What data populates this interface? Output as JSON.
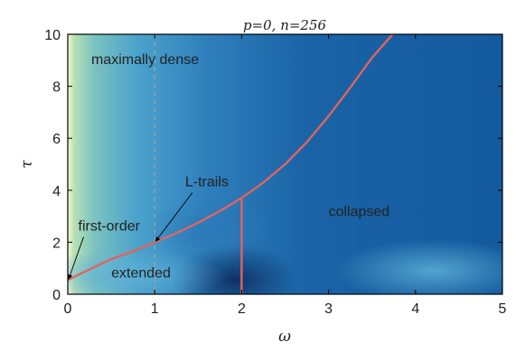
{
  "chart_data": {
    "type": "heatmap",
    "title": "p=0, n=256",
    "xlabel": "ω",
    "ylabel": "τ",
    "xlim": [
      0,
      5
    ],
    "ylim": [
      0,
      10
    ],
    "xticks": [
      "0",
      "1",
      "2",
      "3",
      "4",
      "5"
    ],
    "yticks": [
      "0",
      "2",
      "4",
      "6",
      "8",
      "10"
    ],
    "colormap": {
      "low": "#08306b",
      "mid": "#3c8fc9",
      "high": "#f7f7d0"
    },
    "boundary_color": "#e0645f",
    "reference_line": {
      "x": 1,
      "color": "#9aa0a0",
      "style": "dashed"
    },
    "boundary_curve": {
      "x": [
        0.0,
        0.25,
        0.5,
        0.75,
        1.0,
        1.25,
        1.5,
        1.75,
        2.0,
        2.25,
        2.5,
        2.75,
        3.0,
        3.25,
        3.5,
        3.75
      ],
      "y": [
        0.55,
        0.95,
        1.35,
        1.65,
        2.0,
        2.35,
        2.75,
        3.2,
        3.7,
        4.3,
        5.0,
        5.85,
        6.85,
        7.95,
        9.1,
        10.1
      ]
    },
    "vertical_boundary": {
      "x": 2.0,
      "y_from": 0,
      "y_to": 3.7
    },
    "region_labels": [
      {
        "text": "maximally dense",
        "x": 0.27,
        "y": 8.85
      },
      {
        "text": "extended",
        "x": 0.5,
        "y": 0.65
      },
      {
        "text": "collapsed",
        "x": 3.0,
        "y": 3.0
      },
      {
        "text": "first-order",
        "x": 0.12,
        "y": 2.45,
        "arrow_to": [
          0.0,
          0.55
        ]
      },
      {
        "text": "L-trails",
        "x": 1.35,
        "y": 4.15,
        "arrow_to": [
          1.0,
          2.0
        ]
      }
    ]
  }
}
